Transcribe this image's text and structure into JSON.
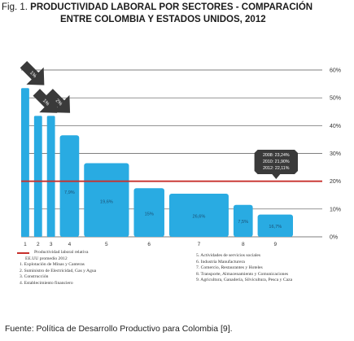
{
  "title": {
    "prefix": "Fig. 1.",
    "line1": "PRODUCTIVIDAD LABORAL POR SECTORES - COMPARACIÓN",
    "line2": "ENTRE COLOMBIA Y ESTADOS UNIDOS, 2012"
  },
  "source": "Fuente: Política de Desarrollo Productivo para Colombia [9].",
  "colors": {
    "bar": "#29abe2",
    "reference_line": "#c8302c",
    "arrow": "#3a3a3a",
    "grid": "#555555"
  },
  "chart_data": {
    "type": "bar",
    "y_axis": {
      "min": 0,
      "max": 60,
      "ticks": [
        "0%",
        "10%",
        "20%",
        "30%",
        "40%",
        "50%",
        "60%"
      ],
      "grid": true
    },
    "bars": [
      {
        "code": "1",
        "value": 53.5,
        "width_share": 1.0,
        "label": "",
        "arrow": "1%"
      },
      {
        "code": "2",
        "value": 43.5,
        "width_share": 1.0,
        "label": "",
        "arrow": "1%"
      },
      {
        "code": "3",
        "value": 43.5,
        "width_share": 1.0,
        "label": "",
        "arrow": "2%"
      },
      {
        "code": "4",
        "value": 36.5,
        "width_share": 2.4,
        "label": "7,9%",
        "arrow": ""
      },
      {
        "code": "5",
        "value": 26.5,
        "width_share": 5.6,
        "label": "19,6%",
        "arrow": ""
      },
      {
        "code": "6",
        "value": 17.5,
        "width_share": 3.8,
        "label": "15%",
        "arrow": ""
      },
      {
        "code": "7",
        "value": 15.5,
        "width_share": 7.4,
        "label": "26,6%",
        "arrow": ""
      },
      {
        "code": "8",
        "value": 11.5,
        "width_share": 2.4,
        "label": "7,5%",
        "arrow": ""
      },
      {
        "code": "9",
        "value": 8.0,
        "width_share": 4.4,
        "label": "16,7%",
        "arrow": ""
      }
    ],
    "reference_line": {
      "value": 20
    },
    "callout": [
      "2008: 23,24%",
      "2010: 21,90%",
      "2012: 22,11%"
    ]
  },
  "legend": {
    "left": [
      "Productividad laboral relativa",
      "EE.UU promedio 2012",
      "1. Explotación de Minas y Canteras",
      "2. Suministro de Electricidad, Gas y Agua",
      "3. Construcción",
      "4. Establecimiento financiero"
    ],
    "right": [
      "5. Actividades de servicios sociales",
      "6. Industria Manufacturera",
      "7. Comercio, Restaurantes y Hoteles",
      "8. Transporte, Almacenamiento y Comunicaciones",
      "9. Agricultura, Ganadería, Silvicultura, Pesca y Caza"
    ]
  }
}
